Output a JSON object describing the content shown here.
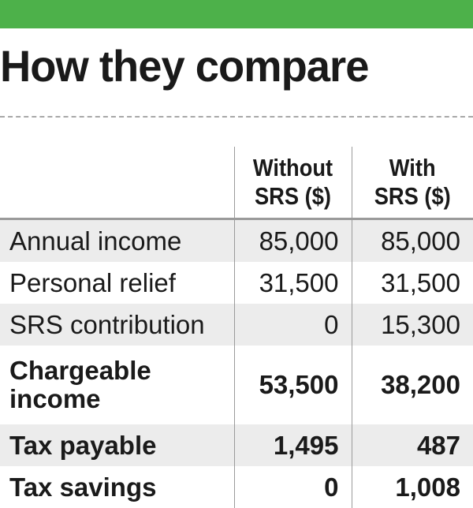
{
  "colors": {
    "accent_bar": "#4db14a"
  },
  "title": "How they compare",
  "table": {
    "headers": {
      "without": [
        "Without",
        "SRS ($)"
      ],
      "with": [
        "With",
        "SRS ($)"
      ]
    },
    "rows": [
      {
        "label": "Annual income",
        "without": "85,000",
        "with": "85,000"
      },
      {
        "label": "Personal relief",
        "without": "31,500",
        "with": "31,500"
      },
      {
        "label": "SRS contribution",
        "without": "0",
        "with": "15,300"
      },
      {
        "label_lines": [
          "Chargeable",
          "income"
        ],
        "without": "53,500",
        "with": "38,200"
      },
      {
        "label": "Tax payable",
        "without": "1,495",
        "with": "487"
      },
      {
        "label": "Tax savings",
        "without": "0",
        "with": "1,008"
      }
    ]
  }
}
